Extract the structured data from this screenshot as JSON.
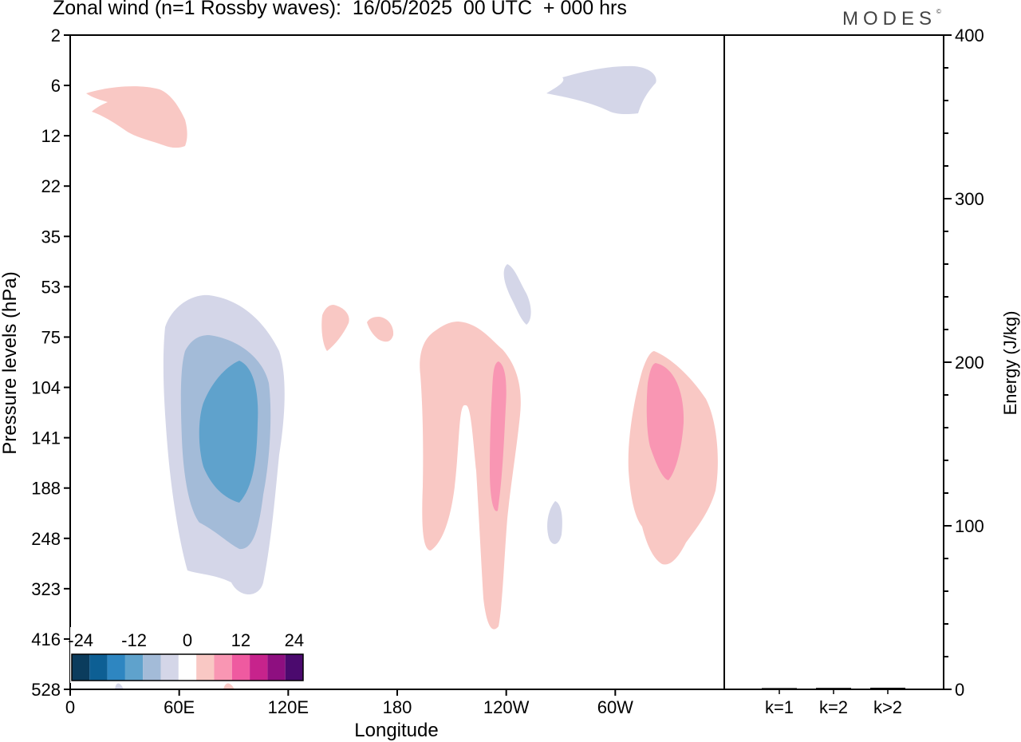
{
  "header": {
    "title": "Zonal wind (n=1 Rossby waves):  16/05/2025  00 UTC  + 000 hrs",
    "brand": "MODES",
    "brand_mark": "©"
  },
  "chart_data": [
    {
      "type": "heatmap",
      "title": "Zonal wind (n=1 Rossby waves):  16/05/2025  00 UTC  + 000 hrs",
      "xlabel": "Longitude",
      "ylabel": "Pressure levels (hPa)",
      "x_ticks": [
        "0",
        "60E",
        "120E",
        "180",
        "120W",
        "60W"
      ],
      "x_tick_degrees": [
        0,
        60,
        120,
        180,
        240,
        300
      ],
      "xlim_degrees": [
        0,
        360
      ],
      "y_ticks": [
        "2",
        "6",
        "12",
        "22",
        "35",
        "53",
        "75",
        "104",
        "141",
        "188",
        "248",
        "323",
        "416",
        "528"
      ],
      "colorbar": {
        "labels": [
          "-24",
          "-12",
          "0",
          "12",
          "24"
        ],
        "colors": [
          "#0b3c5d",
          "#0d5f94",
          "#2e86c1",
          "#5fa2cc",
          "#a3bbd8",
          "#d4d6e8",
          "#ffffff",
          "#f9c8c4",
          "#f996b3",
          "#ef5aa0",
          "#c7238c",
          "#8e0f80",
          "#4b0a6e"
        ],
        "placement": "bottom-left"
      },
      "regions": [
        {
          "sign": "negative",
          "level": 1,
          "approx_lon": [
            52,
            118
          ],
          "approx_hpa": [
            55,
            330
          ]
        },
        {
          "sign": "negative",
          "level": 2,
          "approx_lon": [
            60,
            110
          ],
          "approx_hpa": [
            85,
            260
          ]
        },
        {
          "sign": "negative",
          "level": 3,
          "approx_lon": [
            70,
            103
          ],
          "approx_hpa": [
            110,
            210
          ]
        },
        {
          "sign": "positive",
          "level": 1,
          "approx_lon": [
            192,
            248
          ],
          "approx_hpa": [
            80,
            440
          ]
        },
        {
          "sign": "positive",
          "level": 2,
          "approx_lon": [
            233,
            240
          ],
          "approx_hpa": [
            110,
            210
          ]
        },
        {
          "sign": "positive",
          "level": 1,
          "approx_lon": [
            306,
            356
          ],
          "approx_hpa": [
            85,
            300
          ]
        },
        {
          "sign": "positive",
          "level": 2,
          "approx_lon": [
            317,
            338
          ],
          "approx_hpa": [
            110,
            175
          ]
        },
        {
          "sign": "positive",
          "level": 1,
          "approx_lon": [
            8,
            64
          ],
          "approx_hpa": [
            5,
            13
          ]
        },
        {
          "sign": "negative",
          "level": 1,
          "approx_lon": [
            261,
            322
          ],
          "approx_hpa": [
            4,
            9
          ]
        }
      ],
      "grid": false
    },
    {
      "type": "bar",
      "ylabel": "Energy (J/kg)",
      "categories": [
        "k=1",
        "k=2",
        "k>2"
      ],
      "values": [
        0.3,
        0.4,
        0.5
      ],
      "ylim": [
        0,
        400
      ],
      "y_ticks": [
        "0",
        "100",
        "200",
        "300",
        "400"
      ]
    }
  ]
}
